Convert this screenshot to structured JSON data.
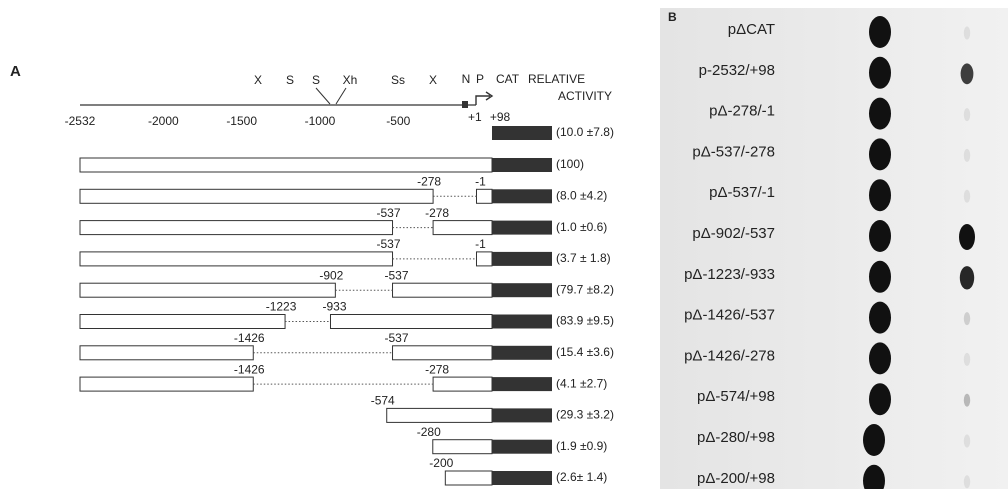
{
  "panel_a": {
    "label": "A",
    "axis_ticks": [
      "-2532",
      "-2000",
      "-1500",
      "-1000",
      "-500",
      "+1",
      "+98"
    ],
    "sites": [
      "X",
      "S",
      "S",
      "Xh",
      "Ss",
      "X",
      "N",
      "P"
    ],
    "header": [
      "CAT",
      "RELATIVE",
      "ACTIVITY"
    ],
    "vector_activity": "(10.0 ±7.8)",
    "constructs": [
      {
        "labels": [],
        "activity": "(100)"
      },
      {
        "labels": [
          "-278",
          "-1"
        ],
        "activity": "(8.0 ±4.2)"
      },
      {
        "labels": [
          "-537",
          "-278"
        ],
        "activity": "(1.0 ±0.6)"
      },
      {
        "labels": [
          "-537",
          "-1"
        ],
        "activity": "(3.7 ± 1.8)"
      },
      {
        "labels": [
          "-902",
          "-537"
        ],
        "activity": "(79.7 ±8.2)"
      },
      {
        "labels": [
          "-1223",
          "-933"
        ],
        "activity": "(83.9 ±9.5)"
      },
      {
        "labels": [
          "-1426",
          "-537"
        ],
        "activity": "(15.4 ±3.6)"
      },
      {
        "labels": [
          "-1426",
          "-278"
        ],
        "activity": "(4.1 ±2.7)"
      },
      {
        "labels": [
          "-574"
        ],
        "activity": "(29.3 ±3.2)"
      },
      {
        "labels": [
          "-280"
        ],
        "activity": "(1.9 ±0.9)"
      },
      {
        "labels": [
          "-200"
        ],
        "activity": "(2.6± 1.4)"
      }
    ]
  },
  "panel_b": {
    "label": "B",
    "rows": [
      "pΔCAT",
      "p-2532/+98",
      "pΔ-278/-1",
      "pΔ-537/-278",
      "pΔ-537/-1",
      "pΔ-902/-537",
      "pΔ-1223/-933",
      "pΔ-1426/-537",
      "pΔ-1426/-278",
      "pΔ-574/+98",
      "pΔ-280/+98",
      "pΔ-200/+98"
    ]
  }
}
